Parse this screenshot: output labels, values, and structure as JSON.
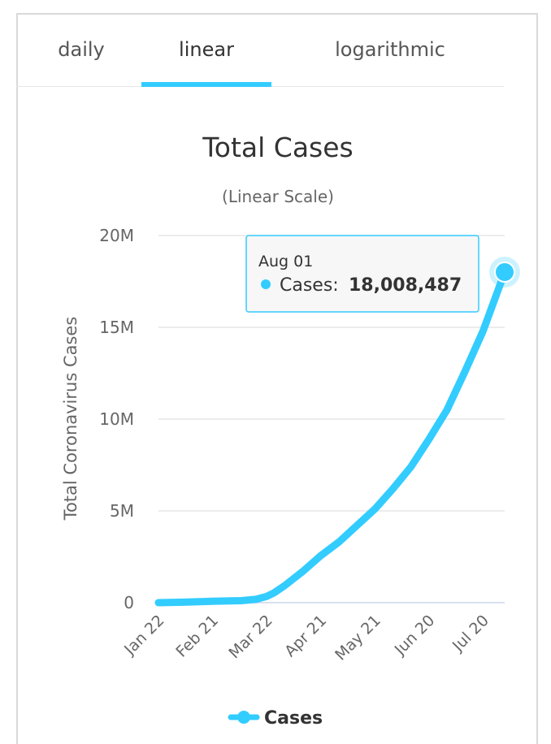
{
  "tabs": [
    {
      "label": "daily"
    },
    {
      "label": "linear"
    },
    {
      "label": "logarithmic"
    }
  ],
  "active_tab": "linear",
  "colors": {
    "series": "#33ccff",
    "accent": "#33ccff",
    "grid": "#e6e6e6",
    "text": "#555555"
  },
  "chart_data": {
    "type": "line",
    "title": "Total Cases",
    "subtitle": "(Linear Scale)",
    "ylabel": "Total Coronavirus Cases",
    "xlabel": "",
    "ylim": [
      0,
      20000000
    ],
    "yticks": [
      {
        "value": 0,
        "label": "0"
      },
      {
        "value": 5000000,
        "label": "5M"
      },
      {
        "value": 10000000,
        "label": "10M"
      },
      {
        "value": 15000000,
        "label": "15M"
      },
      {
        "value": 20000000,
        "label": "20M"
      }
    ],
    "xticks": [
      "Jan 22",
      "Feb 21",
      "Mar 22",
      "Apr 21",
      "May 21",
      "Jun 20",
      "Jul 20"
    ],
    "grid": true,
    "legend_position": "bottom",
    "series": [
      {
        "name": "Cases",
        "x": [
          "Jan 22",
          "Feb 05",
          "Feb 21",
          "Mar 08",
          "Mar 16",
          "Mar 22",
          "Mar 26",
          "Apr 01",
          "Apr 11",
          "Apr 21",
          "May 01",
          "May 11",
          "May 21",
          "May 31",
          "Jun 10",
          "Jun 20",
          "Jun 30",
          "Jul 10",
          "Jul 20",
          "Aug 01"
        ],
        "values": [
          555,
          28000,
          77000,
          110000,
          180000,
          340000,
          530000,
          930000,
          1700000,
          2560000,
          3300000,
          4200000,
          5100000,
          6200000,
          7400000,
          8900000,
          10500000,
          12600000,
          14800000,
          18008487
        ]
      }
    ]
  },
  "tooltip": {
    "date": "Aug 01",
    "series_label": "Cases:",
    "value": "18,008,487"
  }
}
